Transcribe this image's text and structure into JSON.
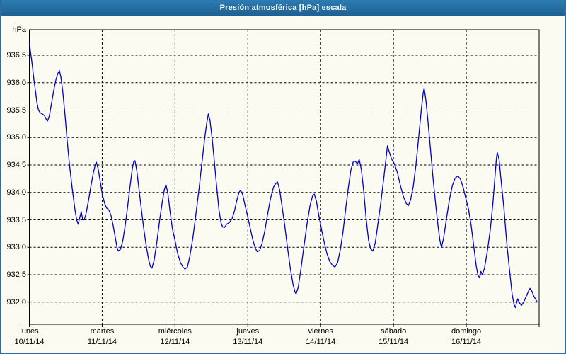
{
  "window": {
    "title": "Presión atmosférica [hPa] escala"
  },
  "colors": {
    "titlebar": "#236FA4",
    "title_text": "#FFFFFF",
    "frame_border": "#34689E",
    "background": "#FBFBF1",
    "plot_border": "#000000",
    "grid": "#000000",
    "line": "#0000C8"
  },
  "chart_data": {
    "type": "line",
    "title": "Presión atmosférica [hPa] escala",
    "ylabel": "hPa",
    "xlabel": "",
    "ylim": [
      931.6,
      937.0
    ],
    "x_range_hours": [
      0,
      168
    ],
    "grid": "dashed",
    "legend": "none",
    "yticks": [
      {
        "value": 936.5,
        "label": "936,5"
      },
      {
        "value": 936.0,
        "label": "936,0"
      },
      {
        "value": 935.5,
        "label": "935,5"
      },
      {
        "value": 935.0,
        "label": "935,0"
      },
      {
        "value": 934.5,
        "label": "934,5"
      },
      {
        "value": 934.0,
        "label": "934,0"
      },
      {
        "value": 933.5,
        "label": "933,5"
      },
      {
        "value": 933.0,
        "label": "933,0"
      },
      {
        "value": 932.5,
        "label": "932,5"
      },
      {
        "value": 932.0,
        "label": "932,0"
      }
    ],
    "xticks": [
      {
        "day": "lunes",
        "date": "10/11/14"
      },
      {
        "day": "martes",
        "date": "11/11/14"
      },
      {
        "day": "miércoles",
        "date": "12/11/14"
      },
      {
        "day": "jueves",
        "date": "13/11/14"
      },
      {
        "day": "viernes",
        "date": "14/11/14"
      },
      {
        "day": "sábado",
        "date": "15/11/14"
      },
      {
        "day": "domingo",
        "date": "16/11/14"
      }
    ],
    "series": [
      {
        "name": "Presión atmosférica [hPa]",
        "color": "#0000C8",
        "points": [
          [
            0,
            936.72
          ],
          [
            0.5,
            936.52
          ],
          [
            1,
            936.3
          ],
          [
            1.5,
            936.06
          ],
          [
            2,
            935.85
          ],
          [
            2.5,
            935.64
          ],
          [
            3,
            935.5
          ],
          [
            3.6,
            935.45
          ],
          [
            4.3,
            935.43
          ],
          [
            5,
            935.4
          ],
          [
            5.6,
            935.33
          ],
          [
            6,
            935.3
          ],
          [
            6.6,
            935.4
          ],
          [
            7.3,
            935.62
          ],
          [
            8,
            935.85
          ],
          [
            8.8,
            936.06
          ],
          [
            9.4,
            936.17
          ],
          [
            9.9,
            936.22
          ],
          [
            10.4,
            936.1
          ],
          [
            11,
            935.84
          ],
          [
            11.7,
            935.44
          ],
          [
            12.4,
            934.98
          ],
          [
            13.2,
            934.52
          ],
          [
            14.1,
            934.08
          ],
          [
            15,
            933.7
          ],
          [
            15.6,
            933.5
          ],
          [
            16.1,
            933.42
          ],
          [
            16.7,
            933.56
          ],
          [
            17.1,
            933.65
          ],
          [
            17.6,
            933.5
          ],
          [
            18.1,
            933.5
          ],
          [
            18.7,
            933.62
          ],
          [
            19.5,
            933.85
          ],
          [
            20.3,
            934.12
          ],
          [
            21.1,
            934.36
          ],
          [
            21.8,
            934.52
          ],
          [
            22.1,
            934.55
          ],
          [
            22.7,
            934.42
          ],
          [
            23.4,
            934.18
          ],
          [
            24,
            933.98
          ],
          [
            24.8,
            933.8
          ],
          [
            25.4,
            933.72
          ],
          [
            26.2,
            933.68
          ],
          [
            26.9,
            933.58
          ],
          [
            27.6,
            933.4
          ],
          [
            28.3,
            933.18
          ],
          [
            28.9,
            933.0
          ],
          [
            29.3,
            932.93
          ],
          [
            30,
            932.96
          ],
          [
            30.8,
            933.12
          ],
          [
            31.6,
            933.4
          ],
          [
            32.4,
            933.75
          ],
          [
            33.2,
            934.12
          ],
          [
            33.9,
            934.42
          ],
          [
            34.4,
            934.56
          ],
          [
            34.8,
            934.58
          ],
          [
            35.4,
            934.4
          ],
          [
            36.2,
            934.02
          ],
          [
            37,
            933.65
          ],
          [
            37.8,
            933.3
          ],
          [
            38.6,
            933.0
          ],
          [
            39.3,
            932.78
          ],
          [
            39.9,
            932.65
          ],
          [
            40.4,
            932.62
          ],
          [
            41.1,
            932.76
          ],
          [
            42,
            933.08
          ],
          [
            42.9,
            933.48
          ],
          [
            43.8,
            933.82
          ],
          [
            44.5,
            934.05
          ],
          [
            45,
            934.14
          ],
          [
            45.6,
            934.0
          ],
          [
            46.3,
            933.68
          ],
          [
            47.1,
            933.35
          ],
          [
            48,
            933.12
          ],
          [
            48.9,
            932.88
          ],
          [
            49.8,
            932.72
          ],
          [
            50.6,
            932.64
          ],
          [
            51.3,
            932.6
          ],
          [
            52.1,
            932.64
          ],
          [
            52.9,
            932.84
          ],
          [
            53.9,
            933.18
          ],
          [
            54.9,
            933.6
          ],
          [
            55.9,
            934.05
          ],
          [
            56.9,
            934.55
          ],
          [
            57.8,
            935.0
          ],
          [
            58.5,
            935.28
          ],
          [
            59,
            935.43
          ],
          [
            59.5,
            935.32
          ],
          [
            60.2,
            935.0
          ],
          [
            60.9,
            934.6
          ],
          [
            61.7,
            934.12
          ],
          [
            62.5,
            933.68
          ],
          [
            63.2,
            933.44
          ],
          [
            63.7,
            933.37
          ],
          [
            64.3,
            933.36
          ],
          [
            65,
            933.42
          ],
          [
            65.9,
            933.45
          ],
          [
            66.8,
            933.52
          ],
          [
            67.6,
            933.66
          ],
          [
            68.4,
            933.86
          ],
          [
            69.1,
            934.0
          ],
          [
            69.6,
            934.04
          ],
          [
            70.3,
            933.96
          ],
          [
            71.1,
            933.76
          ],
          [
            72,
            933.55
          ],
          [
            72.9,
            933.32
          ],
          [
            73.7,
            933.12
          ],
          [
            74.5,
            932.98
          ],
          [
            75.1,
            932.92
          ],
          [
            75.9,
            932.94
          ],
          [
            76.7,
            933.07
          ],
          [
            77.6,
            933.3
          ],
          [
            78.5,
            933.6
          ],
          [
            79.5,
            933.9
          ],
          [
            80.5,
            934.1
          ],
          [
            81.3,
            934.17
          ],
          [
            81.8,
            934.19
          ],
          [
            82.5,
            934.04
          ],
          [
            83.3,
            933.74
          ],
          [
            84.2,
            933.38
          ],
          [
            85.1,
            932.98
          ],
          [
            86,
            932.62
          ],
          [
            86.9,
            932.32
          ],
          [
            87.5,
            932.19
          ],
          [
            87.9,
            932.15
          ],
          [
            88.6,
            932.27
          ],
          [
            89.5,
            932.6
          ],
          [
            90.5,
            933.02
          ],
          [
            91.5,
            933.42
          ],
          [
            92.5,
            933.76
          ],
          [
            93.3,
            933.93
          ],
          [
            93.9,
            933.97
          ],
          [
            94.6,
            933.84
          ],
          [
            95.4,
            933.58
          ],
          [
            96.3,
            933.32
          ],
          [
            97.2,
            933.08
          ],
          [
            98.1,
            932.88
          ],
          [
            99,
            932.74
          ],
          [
            99.9,
            932.67
          ],
          [
            100.7,
            932.64
          ],
          [
            101.6,
            932.72
          ],
          [
            102.5,
            932.96
          ],
          [
            103.4,
            933.3
          ],
          [
            104.3,
            933.72
          ],
          [
            105.2,
            934.12
          ],
          [
            106,
            934.42
          ],
          [
            106.7,
            934.55
          ],
          [
            107.4,
            934.57
          ],
          [
            108.1,
            934.52
          ],
          [
            108.7,
            934.6
          ],
          [
            109.4,
            934.42
          ],
          [
            110.2,
            934.02
          ],
          [
            111,
            933.52
          ],
          [
            111.8,
            933.12
          ],
          [
            112.5,
            932.97
          ],
          [
            113.2,
            932.93
          ],
          [
            114,
            933.08
          ],
          [
            114.9,
            933.44
          ],
          [
            115.9,
            933.85
          ],
          [
            116.9,
            934.3
          ],
          [
            117.6,
            934.65
          ],
          [
            118,
            934.85
          ],
          [
            118.5,
            934.76
          ],
          [
            119.3,
            934.62
          ],
          [
            120.3,
            934.52
          ],
          [
            121.3,
            934.36
          ],
          [
            122.3,
            934.12
          ],
          [
            123.3,
            933.92
          ],
          [
            124.2,
            933.8
          ],
          [
            124.9,
            933.76
          ],
          [
            125.6,
            933.86
          ],
          [
            126.5,
            934.1
          ],
          [
            127.4,
            934.5
          ],
          [
            128.3,
            935.0
          ],
          [
            129.2,
            935.52
          ],
          [
            129.8,
            935.82
          ],
          [
            130.1,
            935.9
          ],
          [
            130.7,
            935.68
          ],
          [
            131.4,
            935.28
          ],
          [
            132.2,
            934.78
          ],
          [
            133,
            934.28
          ],
          [
            133.9,
            933.78
          ],
          [
            134.7,
            933.38
          ],
          [
            135.3,
            933.12
          ],
          [
            135.8,
            933.0
          ],
          [
            136.5,
            933.16
          ],
          [
            137.4,
            933.5
          ],
          [
            138.4,
            933.86
          ],
          [
            139.4,
            934.12
          ],
          [
            140.3,
            934.26
          ],
          [
            141.2,
            934.3
          ],
          [
            142.1,
            934.24
          ],
          [
            143,
            934.08
          ],
          [
            143.9,
            933.88
          ],
          [
            144.7,
            933.7
          ],
          [
            145.6,
            933.4
          ],
          [
            146.5,
            933.0
          ],
          [
            147.3,
            932.65
          ],
          [
            147.9,
            932.48
          ],
          [
            148.4,
            932.45
          ],
          [
            148.8,
            932.56
          ],
          [
            149.3,
            932.5
          ],
          [
            150,
            932.62
          ],
          [
            150.9,
            932.92
          ],
          [
            151.9,
            933.32
          ],
          [
            152.8,
            933.82
          ],
          [
            153.5,
            934.32
          ],
          [
            153.9,
            934.6
          ],
          [
            154.2,
            934.73
          ],
          [
            154.8,
            934.6
          ],
          [
            155.5,
            934.2
          ],
          [
            156.4,
            933.7
          ],
          [
            157.3,
            933.1
          ],
          [
            158.2,
            932.6
          ],
          [
            159.1,
            932.15
          ],
          [
            159.7,
            931.96
          ],
          [
            160.2,
            931.9
          ],
          [
            160.9,
            932.06
          ],
          [
            161.6,
            931.98
          ],
          [
            162.2,
            931.94
          ],
          [
            162.9,
            932.0
          ],
          [
            163.7,
            932.1
          ],
          [
            164.5,
            932.2
          ],
          [
            165,
            932.25
          ],
          [
            165.6,
            932.2
          ],
          [
            166.3,
            932.1
          ],
          [
            166.9,
            932.05
          ],
          [
            167.3,
            932.0
          ]
        ]
      }
    ]
  }
}
